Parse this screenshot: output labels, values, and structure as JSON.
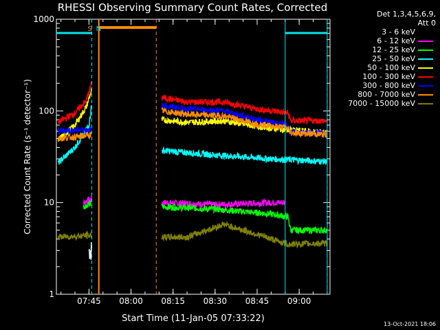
{
  "chart_data": {
    "type": "line",
    "title": "RHESSI Observing Summary Count Rates, Corrected",
    "xlabel": "Start Time (11-Jan-05 07:33:22)",
    "ylabel": "Corrected Count Rate (s⁻¹ detector⁻¹)",
    "yscale": "log",
    "ylim": [
      1,
      1000
    ],
    "xlim": [
      "07:33:22",
      "09:11:00"
    ],
    "x_ticks": [
      "07:45",
      "08:00",
      "08:15",
      "08:30",
      "08:45",
      "09:00"
    ],
    "y_ticks": [
      "1",
      "10",
      "100",
      "1000"
    ],
    "grid": false,
    "legend_header": [
      "Det 1,3,4,5,6,9,",
      "Att 0"
    ],
    "legend_position": "right",
    "flags": [
      {
        "label": "S",
        "time": "07:46",
        "color": "#ff8c00"
      },
      {
        "label": "N",
        "time": "07:47",
        "color": "#00e5ee"
      }
    ],
    "night_intervals": [
      [
        "07:33:22",
        "07:46"
      ],
      [
        "08:55",
        "09:10"
      ]
    ],
    "saa_interval": [
      "07:49",
      "08:09"
    ],
    "series": [
      {
        "name": "3 - 6 keV",
        "color": "#ffffff",
        "level": 1.5,
        "mark_color": "#000000",
        "points": [
          [
            "07:33:22",
            null
          ],
          [
            "07:45",
            3.0
          ],
          [
            "07:46",
            3.0
          ]
        ]
      },
      {
        "name": "6 - 12 keV",
        "color": "#ff00ff",
        "points": [
          [
            "07:43",
            10
          ],
          [
            "07:46",
            11
          ],
          [
            "08:11",
            10
          ],
          [
            "08:30",
            9.5
          ],
          [
            "08:50",
            10
          ],
          [
            "08:55",
            10
          ]
        ]
      },
      {
        "name": "12 - 25 keV",
        "color": "#00ff00",
        "points": [
          [
            "07:43",
            9
          ],
          [
            "07:46",
            10
          ],
          [
            "08:11",
            9
          ],
          [
            "08:30",
            8.5
          ],
          [
            "08:50",
            7.5
          ],
          [
            "08:56",
            7
          ],
          [
            "08:57",
            5
          ],
          [
            "09:10",
            5
          ]
        ]
      },
      {
        "name": "25 - 50 keV",
        "color": "#00ffff",
        "points": [
          [
            "07:34",
            27
          ],
          [
            "07:40",
            40
          ],
          [
            "07:45",
            70
          ],
          [
            "07:46",
            120
          ],
          [
            "08:11",
            37
          ],
          [
            "08:30",
            33
          ],
          [
            "08:50",
            30
          ],
          [
            "09:10",
            28
          ]
        ]
      },
      {
        "name": "50 - 100 keV",
        "color": "#ffff00",
        "points": [
          [
            "07:34",
            48
          ],
          [
            "07:40",
            70
          ],
          [
            "07:44",
            110
          ],
          [
            "07:46",
            170
          ],
          [
            "08:11",
            80
          ],
          [
            "08:20",
            75
          ],
          [
            "08:33",
            78
          ],
          [
            "08:45",
            68
          ],
          [
            "08:56",
            62
          ],
          [
            "09:10",
            58
          ]
        ]
      },
      {
        "name": "100 - 300 keV",
        "color": "#ff0000",
        "points": [
          [
            "07:34",
            75
          ],
          [
            "07:40",
            95
          ],
          [
            "07:44",
            130
          ],
          [
            "07:46",
            200
          ],
          [
            "08:11",
            140
          ],
          [
            "08:20",
            125
          ],
          [
            "08:33",
            125
          ],
          [
            "08:45",
            105
          ],
          [
            "08:56",
            95
          ],
          [
            "08:57",
            78
          ],
          [
            "09:10",
            78
          ]
        ]
      },
      {
        "name": "300 - 800 keV",
        "color": "#0000ff",
        "points": [
          [
            "07:34",
            60
          ],
          [
            "07:40",
            62
          ],
          [
            "07:46",
            62
          ],
          [
            "08:11",
            115
          ],
          [
            "08:20",
            105
          ],
          [
            "08:33",
            100
          ],
          [
            "08:45",
            80
          ],
          [
            "08:56",
            70
          ],
          [
            "08:57",
            58
          ],
          [
            "09:10",
            58
          ]
        ]
      },
      {
        "name": "800 - 7000 keV",
        "color": "#ff8c00",
        "points": [
          [
            "07:34",
            50
          ],
          [
            "07:40",
            52
          ],
          [
            "07:46",
            55
          ],
          [
            "08:11",
            100
          ],
          [
            "08:20",
            92
          ],
          [
            "08:33",
            88
          ],
          [
            "08:45",
            72
          ],
          [
            "08:56",
            65
          ],
          [
            "08:57",
            58
          ],
          [
            "09:10",
            55
          ]
        ]
      },
      {
        "name": "7000 - 15000 keV",
        "color": "#808000",
        "points": [
          [
            "07:34",
            4.2
          ],
          [
            "07:46",
            4.4
          ],
          [
            "08:11",
            4.2
          ],
          [
            "08:20",
            4.2
          ],
          [
            "08:33",
            5.8
          ],
          [
            "08:45",
            4.5
          ],
          [
            "08:56",
            3.5
          ],
          [
            "09:10",
            3.6
          ]
        ]
      }
    ]
  },
  "timestamp": "13-Oct-2021 18:06"
}
